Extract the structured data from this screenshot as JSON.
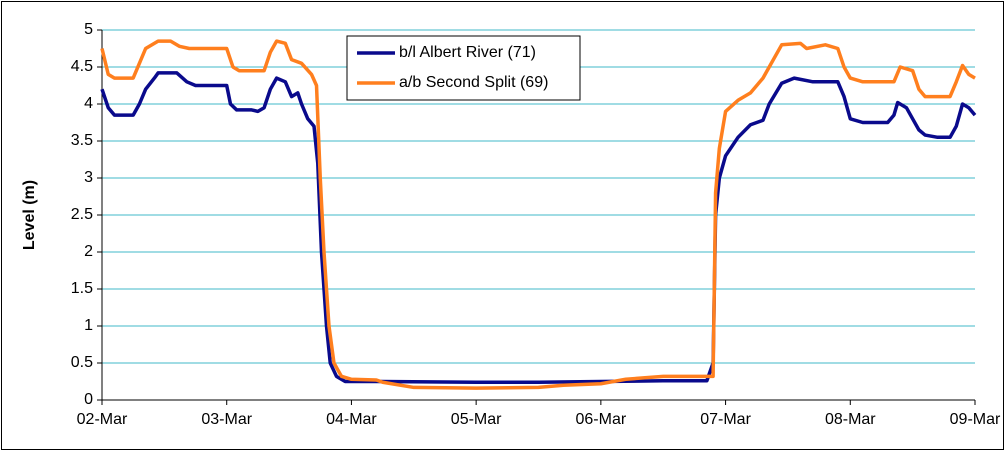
{
  "chart_data": {
    "type": "line",
    "y_label": "Level (m)",
    "xlim": [
      0,
      7
    ],
    "xticks": [
      {
        "value": 0,
        "label": "02-Mar"
      },
      {
        "value": 1,
        "label": "03-Mar"
      },
      {
        "value": 2,
        "label": "04-Mar"
      },
      {
        "value": 3,
        "label": "05-Mar"
      },
      {
        "value": 4,
        "label": "06-Mar"
      },
      {
        "value": 5,
        "label": "07-Mar"
      },
      {
        "value": 6,
        "label": "08-Mar"
      },
      {
        "value": 7,
        "label": "09-Mar"
      }
    ],
    "ylim": [
      0,
      5
    ],
    "yticks": [
      0,
      0.5,
      1,
      1.5,
      2,
      2.5,
      3,
      3.5,
      4,
      4.5,
      5
    ],
    "grid": true,
    "grid_color": "#40b8c8",
    "legend": "top",
    "series": [
      {
        "name": "b/l Albert River (71)",
        "color": "#0a0a8c",
        "x": [
          0,
          0.05,
          0.1,
          0.25,
          0.3,
          0.35,
          0.42,
          0.45,
          0.6,
          0.68,
          0.75,
          1.0,
          1.03,
          1.08,
          1.2,
          1.25,
          1.3,
          1.35,
          1.4,
          1.47,
          1.52,
          1.57,
          1.6,
          1.65,
          1.7,
          1.73,
          1.76,
          1.8,
          1.83,
          1.88,
          1.95,
          2.2,
          3.0,
          3.5,
          4.0,
          4.5,
          4.85,
          4.9,
          4.92,
          4.95,
          5.0,
          5.1,
          5.2,
          5.3,
          5.35,
          5.45,
          5.55,
          5.7,
          5.9,
          5.95,
          6.0,
          6.1,
          6.3,
          6.35,
          6.38,
          6.45,
          6.5,
          6.55,
          6.6,
          6.7,
          6.8,
          6.85,
          6.9,
          6.95,
          7.0
        ],
        "values": [
          4.2,
          3.95,
          3.85,
          3.85,
          4.0,
          4.2,
          4.35,
          4.42,
          4.42,
          4.3,
          4.25,
          4.25,
          4.0,
          3.92,
          3.92,
          3.9,
          3.95,
          4.2,
          4.35,
          4.3,
          4.1,
          4.15,
          4.0,
          3.8,
          3.7,
          3.2,
          2.0,
          1.0,
          0.5,
          0.32,
          0.25,
          0.25,
          0.24,
          0.24,
          0.25,
          0.26,
          0.26,
          0.5,
          2.5,
          3.0,
          3.3,
          3.55,
          3.72,
          3.78,
          4.0,
          4.28,
          4.35,
          4.3,
          4.3,
          4.1,
          3.8,
          3.75,
          3.75,
          3.85,
          4.02,
          3.95,
          3.8,
          3.65,
          3.58,
          3.55,
          3.55,
          3.7,
          4.0,
          3.95,
          3.85
        ]
      },
      {
        "name": "a/b Second Split (69)",
        "color": "#ff7f1e",
        "x": [
          0,
          0.05,
          0.1,
          0.25,
          0.3,
          0.35,
          0.45,
          0.55,
          0.62,
          0.7,
          1.0,
          1.05,
          1.1,
          1.3,
          1.35,
          1.4,
          1.47,
          1.52,
          1.6,
          1.68,
          1.72,
          1.75,
          1.78,
          1.82,
          1.86,
          1.92,
          2.0,
          2.2,
          2.25,
          2.5,
          3.0,
          3.5,
          3.7,
          4.0,
          4.2,
          4.5,
          4.9,
          4.92,
          4.95,
          5.0,
          5.1,
          5.2,
          5.3,
          5.35,
          5.45,
          5.6,
          5.65,
          5.8,
          5.9,
          5.95,
          6.0,
          6.1,
          6.35,
          6.4,
          6.5,
          6.55,
          6.6,
          6.8,
          6.85,
          6.9,
          6.95,
          7.0
        ],
        "values": [
          4.75,
          4.4,
          4.35,
          4.35,
          4.55,
          4.75,
          4.85,
          4.85,
          4.78,
          4.75,
          4.75,
          4.5,
          4.45,
          4.45,
          4.7,
          4.85,
          4.82,
          4.6,
          4.55,
          4.4,
          4.25,
          3.0,
          2.0,
          1.0,
          0.5,
          0.32,
          0.28,
          0.27,
          0.24,
          0.17,
          0.16,
          0.17,
          0.2,
          0.22,
          0.28,
          0.32,
          0.32,
          2.8,
          3.4,
          3.9,
          4.05,
          4.15,
          4.35,
          4.5,
          4.8,
          4.82,
          4.75,
          4.8,
          4.75,
          4.5,
          4.35,
          4.3,
          4.3,
          4.5,
          4.45,
          4.2,
          4.1,
          4.1,
          4.3,
          4.52,
          4.4,
          4.35
        ]
      }
    ]
  }
}
